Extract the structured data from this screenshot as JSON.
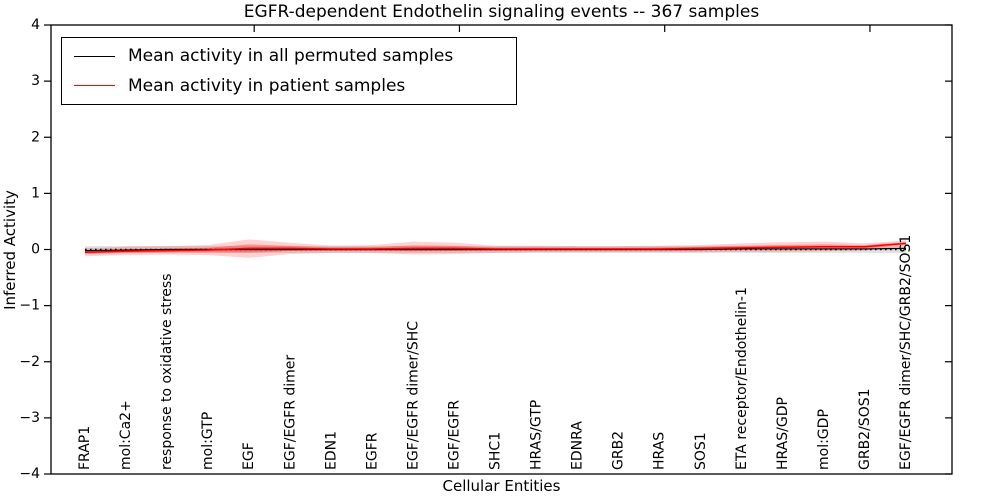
{
  "title": "EGFR-dependent Endothelin signaling events -- 367 samples",
  "legend": {
    "entries": [
      {
        "label": "Mean activity in all permuted samples",
        "color": "#000000"
      },
      {
        "label": "Mean activity in patient samples",
        "color": "#ff0000"
      }
    ]
  },
  "chart_data": {
    "type": "line",
    "title": "EGFR-dependent Endothelin signaling events -- 367 samples",
    "xlabel": "Cellular Entities",
    "ylabel": "Inferred Activity",
    "ylim": [
      -4,
      4
    ],
    "yticks": [
      4,
      3,
      2,
      1,
      0,
      -1,
      -2,
      -3,
      -4
    ],
    "ytick_labels": [
      "4",
      "3",
      "2",
      "1",
      "0",
      "−1",
      "−2",
      "−3",
      "−4"
    ],
    "x_major_tick_indices": [
      4,
      9,
      14,
      19
    ],
    "grid": false,
    "legend_position": "upper left",
    "zero_line": {
      "y": 0,
      "style": "dotted",
      "color": "#000000"
    },
    "categories": [
      "FRAP1",
      "mol:Ca2+",
      "response to oxidative stress",
      "mol:GTP",
      "EGF",
      "EGF/EGFR dimer",
      "EDN1",
      "EGFR",
      "EGF/EGFR dimer/SHC",
      "EGF/EGFR",
      "SHC1",
      "HRAS/GTP",
      "EDNRA",
      "GRB2",
      "HRAS",
      "SOS1",
      "ETA receptor/Endothelin-1",
      "HRAS/GDP",
      "mol:GDP",
      "GRB2/SOS1",
      "EGF/EGFR dimer/SHC/GRB2/SOS1"
    ],
    "series": [
      {
        "name": "Mean activity in all permuted samples",
        "color": "#000000",
        "values": [
          -0.02,
          -0.01,
          0.0,
          0.0,
          0.0,
          0.0,
          0.0,
          0.0,
          0.0,
          0.0,
          0.0,
          0.0,
          0.0,
          0.0,
          0.0,
          0.0,
          0.01,
          0.01,
          0.01,
          0.01,
          0.02
        ]
      },
      {
        "name": "Mean activity in patient samples",
        "color": "#ff0000",
        "values": [
          -0.05,
          -0.03,
          -0.02,
          -0.01,
          0.02,
          0.02,
          0.01,
          0.01,
          0.02,
          0.02,
          0.01,
          0.01,
          0.01,
          0.01,
          0.01,
          0.02,
          0.03,
          0.04,
          0.05,
          0.05,
          0.11
        ]
      }
    ],
    "bands": [
      {
        "name": "permuted-sample-range",
        "color": "#000000",
        "opacity": 0.12,
        "upper": 0.06,
        "lower": -0.06
      },
      {
        "name": "patient-sample-range-outer",
        "color": "#ff0000",
        "opacity": 0.18,
        "upper": [
          0.02,
          0.05,
          0.06,
          0.08,
          0.18,
          0.12,
          0.07,
          0.08,
          0.14,
          0.12,
          0.07,
          0.07,
          0.06,
          0.06,
          0.07,
          0.08,
          0.11,
          0.13,
          0.14,
          0.11,
          0.16
        ],
        "lower": [
          -0.12,
          -0.1,
          -0.09,
          -0.1,
          -0.15,
          -0.08,
          -0.06,
          -0.06,
          -0.09,
          -0.08,
          -0.06,
          -0.05,
          -0.05,
          -0.05,
          -0.05,
          -0.05,
          -0.04,
          -0.04,
          -0.03,
          -0.02,
          0.06
        ]
      },
      {
        "name": "patient-sample-range-inner",
        "color": "#ff0000",
        "opacity": 0.3,
        "derived_from": "patient-sample-range-outer",
        "mean_series": 1,
        "fraction": 0.45
      }
    ]
  }
}
